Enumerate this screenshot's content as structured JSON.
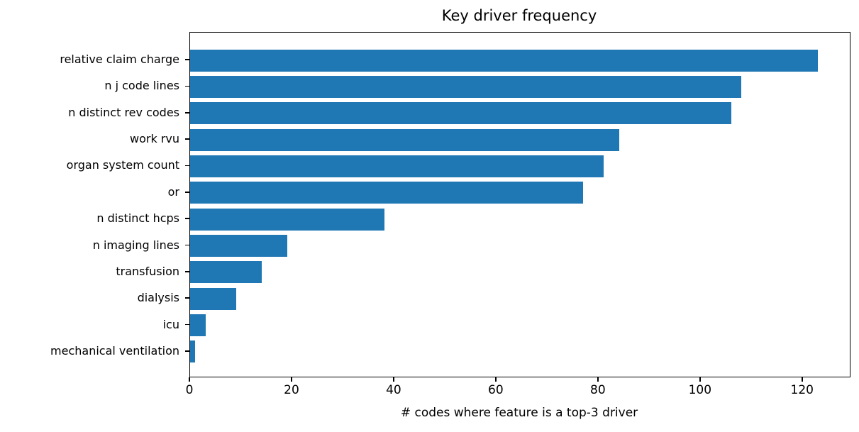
{
  "chart_data": {
    "type": "bar",
    "orientation": "horizontal",
    "title": "Key driver frequency",
    "xlabel": "# codes where feature is a top-3 driver",
    "ylabel": "",
    "categories": [
      "relative claim charge",
      "n j code lines",
      "n distinct rev codes",
      "work rvu",
      "organ system count",
      "or",
      "n distinct hcps",
      "n imaging lines",
      "transfusion",
      "dialysis",
      "icu",
      "mechanical ventilation"
    ],
    "values": [
      123,
      108,
      106,
      84,
      81,
      77,
      38,
      19,
      14,
      9,
      3,
      1
    ],
    "xticks": [
      0,
      20,
      40,
      60,
      80,
      100,
      120
    ],
    "xlim": [
      0,
      129.2
    ],
    "bar_color": "#1f77b4",
    "axis_color": "#000000",
    "text_color": "#000000",
    "grid": false,
    "legend": null
  }
}
